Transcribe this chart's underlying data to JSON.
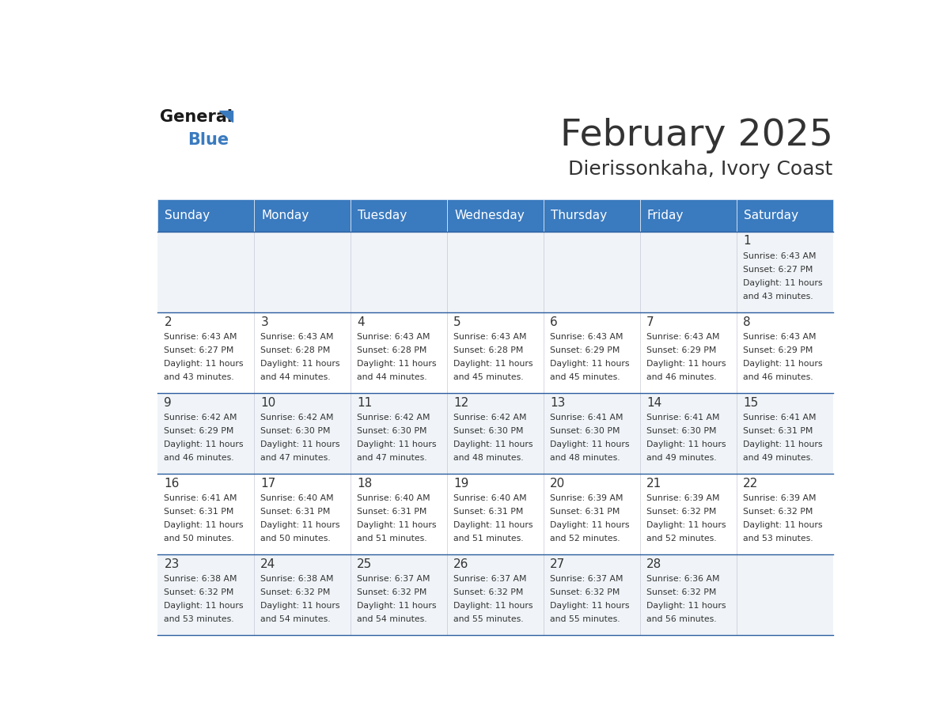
{
  "title": "February 2025",
  "subtitle": "Dierissonkaha, Ivory Coast",
  "header_bg": "#3a7abf",
  "header_text_color": "#ffffff",
  "cell_bg_odd": "#f0f4f8",
  "cell_bg_even": "#ffffff",
  "border_color": "#2a5d9f",
  "text_color": "#333333",
  "days_of_week": [
    "Sunday",
    "Monday",
    "Tuesday",
    "Wednesday",
    "Thursday",
    "Friday",
    "Saturday"
  ],
  "calendar_data": [
    [
      null,
      null,
      null,
      null,
      null,
      null,
      {
        "day": "1",
        "sunrise": "6:43 AM",
        "sunset": "6:27 PM",
        "daylight_h": "11 hours",
        "daylight_m": "and 43 minutes."
      }
    ],
    [
      {
        "day": "2",
        "sunrise": "6:43 AM",
        "sunset": "6:27 PM",
        "daylight_h": "11 hours",
        "daylight_m": "and 43 minutes."
      },
      {
        "day": "3",
        "sunrise": "6:43 AM",
        "sunset": "6:28 PM",
        "daylight_h": "11 hours",
        "daylight_m": "and 44 minutes."
      },
      {
        "day": "4",
        "sunrise": "6:43 AM",
        "sunset": "6:28 PM",
        "daylight_h": "11 hours",
        "daylight_m": "and 44 minutes."
      },
      {
        "day": "5",
        "sunrise": "6:43 AM",
        "sunset": "6:28 PM",
        "daylight_h": "11 hours",
        "daylight_m": "and 45 minutes."
      },
      {
        "day": "6",
        "sunrise": "6:43 AM",
        "sunset": "6:29 PM",
        "daylight_h": "11 hours",
        "daylight_m": "and 45 minutes."
      },
      {
        "day": "7",
        "sunrise": "6:43 AM",
        "sunset": "6:29 PM",
        "daylight_h": "11 hours",
        "daylight_m": "and 46 minutes."
      },
      {
        "day": "8",
        "sunrise": "6:43 AM",
        "sunset": "6:29 PM",
        "daylight_h": "11 hours",
        "daylight_m": "and 46 minutes."
      }
    ],
    [
      {
        "day": "9",
        "sunrise": "6:42 AM",
        "sunset": "6:29 PM",
        "daylight_h": "11 hours",
        "daylight_m": "and 46 minutes."
      },
      {
        "day": "10",
        "sunrise": "6:42 AM",
        "sunset": "6:30 PM",
        "daylight_h": "11 hours",
        "daylight_m": "and 47 minutes."
      },
      {
        "day": "11",
        "sunrise": "6:42 AM",
        "sunset": "6:30 PM",
        "daylight_h": "11 hours",
        "daylight_m": "and 47 minutes."
      },
      {
        "day": "12",
        "sunrise": "6:42 AM",
        "sunset": "6:30 PM",
        "daylight_h": "11 hours",
        "daylight_m": "and 48 minutes."
      },
      {
        "day": "13",
        "sunrise": "6:41 AM",
        "sunset": "6:30 PM",
        "daylight_h": "11 hours",
        "daylight_m": "and 48 minutes."
      },
      {
        "day": "14",
        "sunrise": "6:41 AM",
        "sunset": "6:30 PM",
        "daylight_h": "11 hours",
        "daylight_m": "and 49 minutes."
      },
      {
        "day": "15",
        "sunrise": "6:41 AM",
        "sunset": "6:31 PM",
        "daylight_h": "11 hours",
        "daylight_m": "and 49 minutes."
      }
    ],
    [
      {
        "day": "16",
        "sunrise": "6:41 AM",
        "sunset": "6:31 PM",
        "daylight_h": "11 hours",
        "daylight_m": "and 50 minutes."
      },
      {
        "day": "17",
        "sunrise": "6:40 AM",
        "sunset": "6:31 PM",
        "daylight_h": "11 hours",
        "daylight_m": "and 50 minutes."
      },
      {
        "day": "18",
        "sunrise": "6:40 AM",
        "sunset": "6:31 PM",
        "daylight_h": "11 hours",
        "daylight_m": "and 51 minutes."
      },
      {
        "day": "19",
        "sunrise": "6:40 AM",
        "sunset": "6:31 PM",
        "daylight_h": "11 hours",
        "daylight_m": "and 51 minutes."
      },
      {
        "day": "20",
        "sunrise": "6:39 AM",
        "sunset": "6:31 PM",
        "daylight_h": "11 hours",
        "daylight_m": "and 52 minutes."
      },
      {
        "day": "21",
        "sunrise": "6:39 AM",
        "sunset": "6:32 PM",
        "daylight_h": "11 hours",
        "daylight_m": "and 52 minutes."
      },
      {
        "day": "22",
        "sunrise": "6:39 AM",
        "sunset": "6:32 PM",
        "daylight_h": "11 hours",
        "daylight_m": "and 53 minutes."
      }
    ],
    [
      {
        "day": "23",
        "sunrise": "6:38 AM",
        "sunset": "6:32 PM",
        "daylight_h": "11 hours",
        "daylight_m": "and 53 minutes."
      },
      {
        "day": "24",
        "sunrise": "6:38 AM",
        "sunset": "6:32 PM",
        "daylight_h": "11 hours",
        "daylight_m": "and 54 minutes."
      },
      {
        "day": "25",
        "sunrise": "6:37 AM",
        "sunset": "6:32 PM",
        "daylight_h": "11 hours",
        "daylight_m": "and 54 minutes."
      },
      {
        "day": "26",
        "sunrise": "6:37 AM",
        "sunset": "6:32 PM",
        "daylight_h": "11 hours",
        "daylight_m": "and 55 minutes."
      },
      {
        "day": "27",
        "sunrise": "6:37 AM",
        "sunset": "6:32 PM",
        "daylight_h": "11 hours",
        "daylight_m": "and 55 minutes."
      },
      {
        "day": "28",
        "sunrise": "6:36 AM",
        "sunset": "6:32 PM",
        "daylight_h": "11 hours",
        "daylight_m": "and 56 minutes."
      },
      null
    ]
  ]
}
